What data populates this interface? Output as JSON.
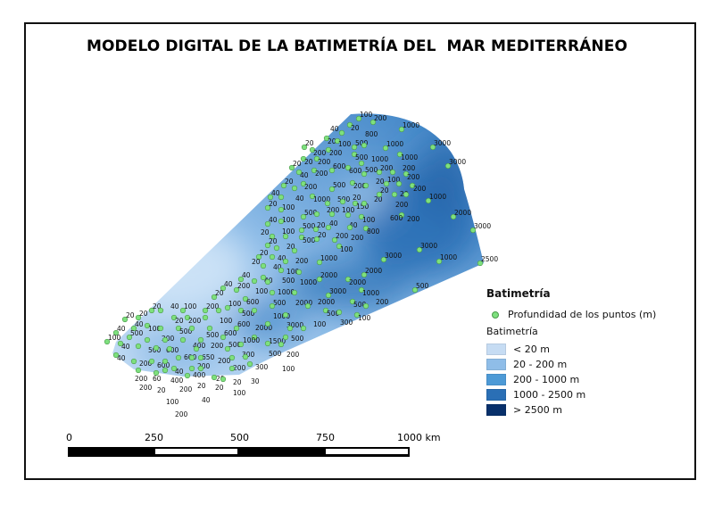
{
  "title": "MODELO DIGITAL DE LA BATIMETRÍA DEL  MAR MEDITERRÁNEO",
  "legend": {
    "title": "Batimetría",
    "points_label": "Profundidad de los  puntos (m)",
    "points_color": "#7ee07e",
    "raster_title": "Batimetría",
    "classes": [
      {
        "label": " < 20 m",
        "color": "#c6dcf3"
      },
      {
        "label": "20 - 200 m",
        "color": "#8fbde8"
      },
      {
        "label": "200 - 1000 m",
        "color": "#4d9ad6"
      },
      {
        "label": "1000 - 2500 m",
        "color": "#2a6fb5"
      },
      {
        "label": " > 2500  m",
        "color": "#08306b"
      }
    ]
  },
  "scale_bar": {
    "labels": [
      "0",
      "250",
      "500",
      "750",
      "1000 km"
    ]
  },
  "depth_points": [
    "100",
    "200",
    "20",
    "40",
    "1000",
    "20",
    "100",
    "500",
    "800",
    "500",
    "1000",
    "20",
    "200",
    "200",
    "1000",
    "20",
    "200",
    "3000",
    "3000",
    "20",
    "40",
    "200",
    "600",
    "600",
    "1000",
    "200",
    "20",
    "40",
    "500",
    "200",
    "200",
    "200",
    "500",
    "200",
    "20",
    "100",
    "20",
    "200",
    "1000",
    "40",
    "100",
    "1000",
    "500",
    "20",
    "150",
    "20",
    "20",
    "200",
    "200",
    "20",
    "100",
    "500",
    "200",
    "100",
    "40",
    "100",
    "600",
    "2000",
    "40",
    "100",
    "500",
    "20",
    "40",
    "200",
    "800",
    "3000",
    "20",
    "20",
    "500",
    "20",
    "200",
    "100",
    "3000",
    "1000",
    "3000",
    "2500",
    "20",
    "40",
    "200",
    "20",
    "40",
    "100",
    "1000",
    "20",
    "500",
    "1000",
    "2000",
    "40",
    "40",
    "100",
    "1000",
    "2000",
    "2000",
    "40",
    "200",
    "500",
    "2000",
    "1000",
    "500",
    "20",
    "600",
    "1000",
    "3000",
    "500",
    "100",
    "500",
    "2000",
    "2000",
    "200",
    "500",
    "300",
    "100",
    "3000",
    "20",
    "20",
    "20",
    "40",
    "100",
    "200",
    "100",
    "20",
    "200",
    "500",
    "1500",
    "500",
    "100",
    "40",
    "100",
    "200",
    "500",
    "400",
    "200",
    "600",
    "200",
    "40",
    "500",
    "500",
    "600",
    "600",
    "650",
    "600",
    "1000",
    "100",
    "40",
    "200",
    "600",
    "400",
    "200",
    "500",
    "300",
    "500",
    "100",
    "40",
    "200",
    "60",
    "40",
    "200",
    "400",
    "200",
    "200",
    "300",
    "200",
    "20",
    "100",
    "20",
    "20",
    "40",
    "20",
    "20",
    "100",
    "30",
    "200"
  ]
}
